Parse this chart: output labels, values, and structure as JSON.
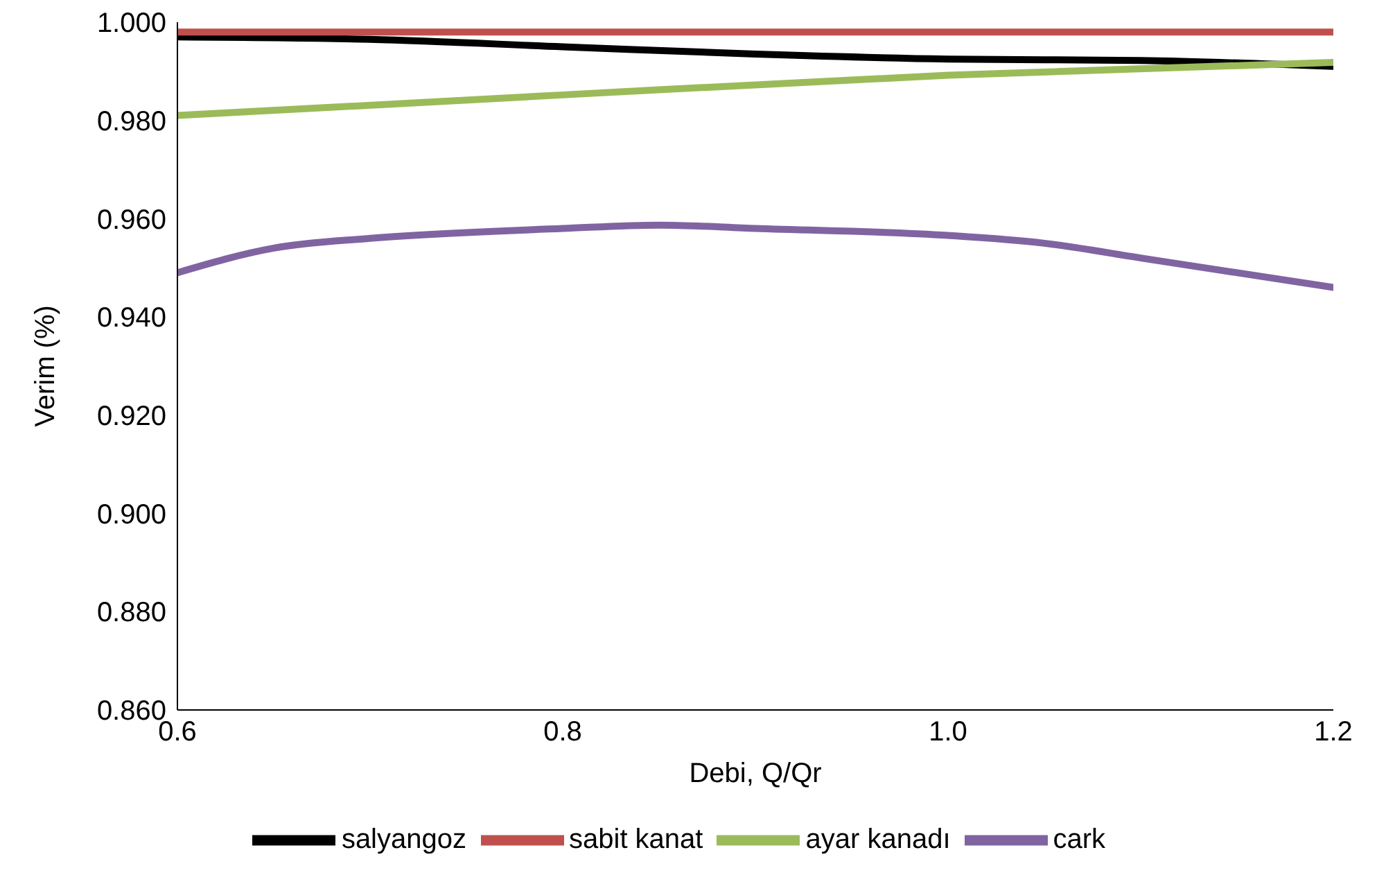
{
  "chart_data": {
    "type": "line",
    "xlabel": "Debi, Q/Qr",
    "ylabel": "Verim (%)",
    "xlim": [
      0.6,
      1.2
    ],
    "xticks": [
      0.6,
      0.8,
      {
        "value": 1.0,
        "label": "1.0"
      },
      1.2
    ],
    "ylim": [
      0.86,
      1.0
    ],
    "yticks": [
      {
        "value": 0.86,
        "label": "0.860"
      },
      {
        "value": 0.88,
        "label": "0.880"
      },
      {
        "value": 0.9,
        "label": "0.900"
      },
      {
        "value": 0.92,
        "label": "0.920"
      },
      {
        "value": 0.94,
        "label": "0.940"
      },
      {
        "value": 0.96,
        "label": "0.960"
      },
      {
        "value": 0.98,
        "label": "0.980"
      },
      {
        "value": 1.0,
        "label": "1.000"
      }
    ],
    "grid": false,
    "legend": "bottom",
    "marker": "none",
    "line_style": "solid",
    "series": [
      {
        "name": "salyangoz",
        "color": "#000000",
        "x": [
          0.6,
          0.7,
          0.8,
          0.9,
          1.0,
          1.1,
          1.2
        ],
        "values": [
          0.997,
          0.9965,
          0.995,
          0.9935,
          0.9925,
          0.9922,
          0.991
        ]
      },
      {
        "name": "sabit kanat",
        "color": "#c0504d",
        "x": [
          0.6,
          0.8,
          1.0,
          1.2
        ],
        "values": [
          0.998,
          0.998,
          0.998,
          0.998
        ]
      },
      {
        "name": "ayar kanadı",
        "color": "#9bbb59",
        "x": [
          0.6,
          0.8,
          1.0,
          1.2
        ],
        "values": [
          0.981,
          0.9852,
          0.9892,
          0.9918
        ]
      },
      {
        "name": "cark",
        "color": "#8064a2",
        "x": [
          0.6,
          0.65,
          0.7,
          0.8,
          0.85,
          0.9,
          1.0,
          1.05,
          1.1,
          1.2
        ],
        "values": [
          0.949,
          0.954,
          0.956,
          0.958,
          0.9587,
          0.958,
          0.9566,
          0.955,
          0.952,
          0.946
        ]
      }
    ]
  }
}
